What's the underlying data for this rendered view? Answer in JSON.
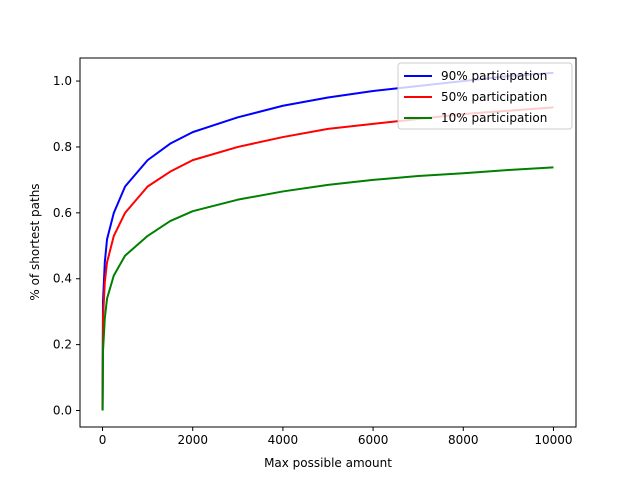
{
  "chart_data": {
    "type": "line",
    "xlabel": "Max possible amount",
    "ylabel": "% of shortest paths",
    "xlim": [
      -500,
      10500
    ],
    "ylim": [
      -0.05,
      1.07
    ],
    "xticks": [
      0,
      2000,
      4000,
      6000,
      8000,
      10000
    ],
    "xtick_labels": [
      "0",
      "2000",
      "4000",
      "6000",
      "8000",
      "10000"
    ],
    "yticks": [
      0.0,
      0.2,
      0.4,
      0.6,
      0.8,
      1.0
    ],
    "ytick_labels": [
      "0.0",
      "0.2",
      "0.4",
      "0.6",
      "0.8",
      "1.0"
    ],
    "grid": false,
    "legend_position": "top-right",
    "series": [
      {
        "name": "90% participation",
        "color": "#0000ff",
        "x": [
          0,
          10,
          50,
          100,
          250,
          500,
          1000,
          1500,
          2000,
          3000,
          4000,
          5000,
          6000,
          7000,
          8000,
          9000,
          10000
        ],
        "y": [
          0.0,
          0.33,
          0.45,
          0.52,
          0.6,
          0.68,
          0.76,
          0.81,
          0.845,
          0.89,
          0.925,
          0.95,
          0.97,
          0.985,
          1.0,
          1.015,
          1.025
        ]
      },
      {
        "name": "50% participation",
        "color": "#ff0000",
        "x": [
          0,
          10,
          50,
          100,
          250,
          500,
          1000,
          1500,
          2000,
          3000,
          4000,
          5000,
          6000,
          7000,
          8000,
          9000,
          10000
        ],
        "y": [
          0.0,
          0.28,
          0.39,
          0.45,
          0.53,
          0.6,
          0.68,
          0.725,
          0.76,
          0.8,
          0.83,
          0.855,
          0.87,
          0.885,
          0.9,
          0.91,
          0.92
        ]
      },
      {
        "name": "10% participation",
        "color": "#008000",
        "x": [
          0,
          10,
          50,
          100,
          250,
          500,
          1000,
          1500,
          2000,
          3000,
          4000,
          5000,
          6000,
          7000,
          8000,
          9000,
          10000
        ],
        "y": [
          0.0,
          0.18,
          0.28,
          0.34,
          0.41,
          0.47,
          0.53,
          0.575,
          0.605,
          0.64,
          0.665,
          0.685,
          0.7,
          0.712,
          0.72,
          0.73,
          0.738
        ]
      }
    ]
  }
}
